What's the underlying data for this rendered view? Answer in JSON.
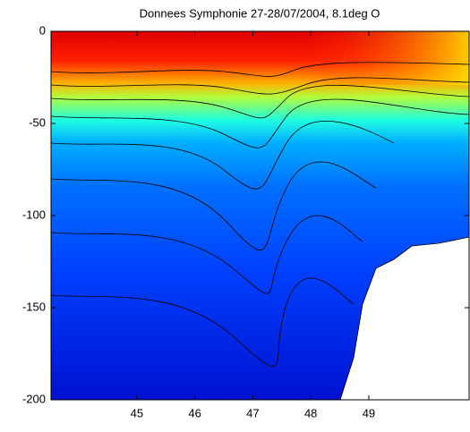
{
  "chart_data": {
    "type": "contour",
    "title": "Donnees Symphonie 27-28/07/2004, 8.1deg O",
    "xlim": [
      43.52,
      50.73
    ],
    "xticks": [
      45,
      46,
      47,
      48,
      49
    ],
    "ylim": [
      -200,
      0
    ],
    "yticks": [
      -200,
      -150,
      -100,
      -50,
      0
    ]
  }
}
